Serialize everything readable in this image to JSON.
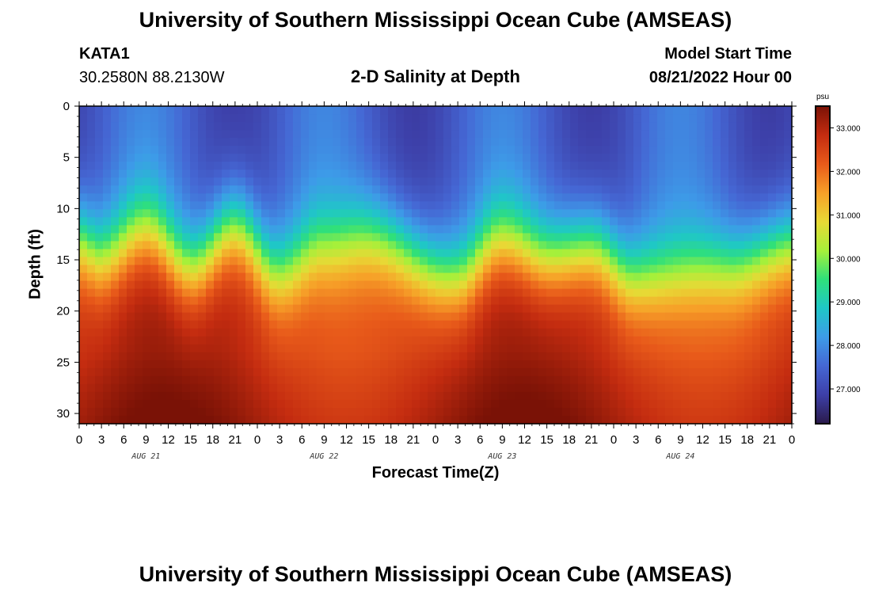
{
  "header": {
    "title": "University of Southern Mississippi Ocean Cube (AMSEAS)",
    "station": "KATA1",
    "coordinates": "30.2580N  88.2130W",
    "subtitle": "2-D Salinity at Depth",
    "model_start_label": "Model Start Time",
    "model_start_value": "08/21/2022 Hour 00"
  },
  "footer": {
    "title": "University of Southern Mississippi Ocean Cube (AMSEAS)"
  },
  "chart_data": {
    "type": "heatmap",
    "title": "2-D Salinity at Depth",
    "xlabel": "Forecast Time(Z)",
    "ylabel": "Depth (ft)",
    "x_range_hours": [
      0,
      96
    ],
    "x_tick_labels": [
      "0",
      "3",
      "6",
      "9",
      "12",
      "15",
      "18",
      "21",
      "0",
      "3",
      "6",
      "9",
      "12",
      "15",
      "18",
      "21",
      "0",
      "3",
      "6",
      "9",
      "12",
      "15",
      "18",
      "21",
      "0",
      "3",
      "6",
      "9",
      "12",
      "15",
      "18",
      "21",
      "0"
    ],
    "day_labels": [
      "AUG 21",
      "AUG 22",
      "AUG 23",
      "AUG 24"
    ],
    "y_range_ft": [
      0,
      31
    ],
    "y_ticks": [
      0,
      5,
      10,
      15,
      20,
      25,
      30
    ],
    "y_inverted": true,
    "colorbar": {
      "unit": "psu",
      "range": [
        26.2,
        33.5
      ],
      "ticks": [
        27.0,
        28.0,
        29.0,
        30.0,
        31.0,
        32.0,
        33.0
      ],
      "tick_labels": [
        "27.000",
        "28.000",
        "29.000",
        "30.000",
        "31.000",
        "32.000",
        "33.000"
      ],
      "colors": [
        "#2a1a4a",
        "#3d3fa8",
        "#4567d4",
        "#3d9be8",
        "#1fc7c7",
        "#2fe07a",
        "#a6f03a",
        "#e8d935",
        "#f7a028",
        "#e85a1a",
        "#c42c10",
        "#7a1206"
      ]
    },
    "field_model": {
      "surface_salinity_range": [
        26.8,
        27.9
      ],
      "bottom_salinity_range": [
        32.3,
        33.3
      ],
      "halocline_center_depth_ft": [
        13.0,
        14.5,
        12.0,
        15.5,
        11.5,
        16.0,
        13.5,
        12.5,
        16.5,
        13.0,
        14.5,
        13.5,
        16.5,
        15.5,
        13.5
      ],
      "halocline_anchor_hours": [
        0,
        3,
        9,
        15,
        21,
        27,
        33,
        39,
        51,
        57,
        63,
        69,
        75,
        87,
        96
      ]
    }
  }
}
